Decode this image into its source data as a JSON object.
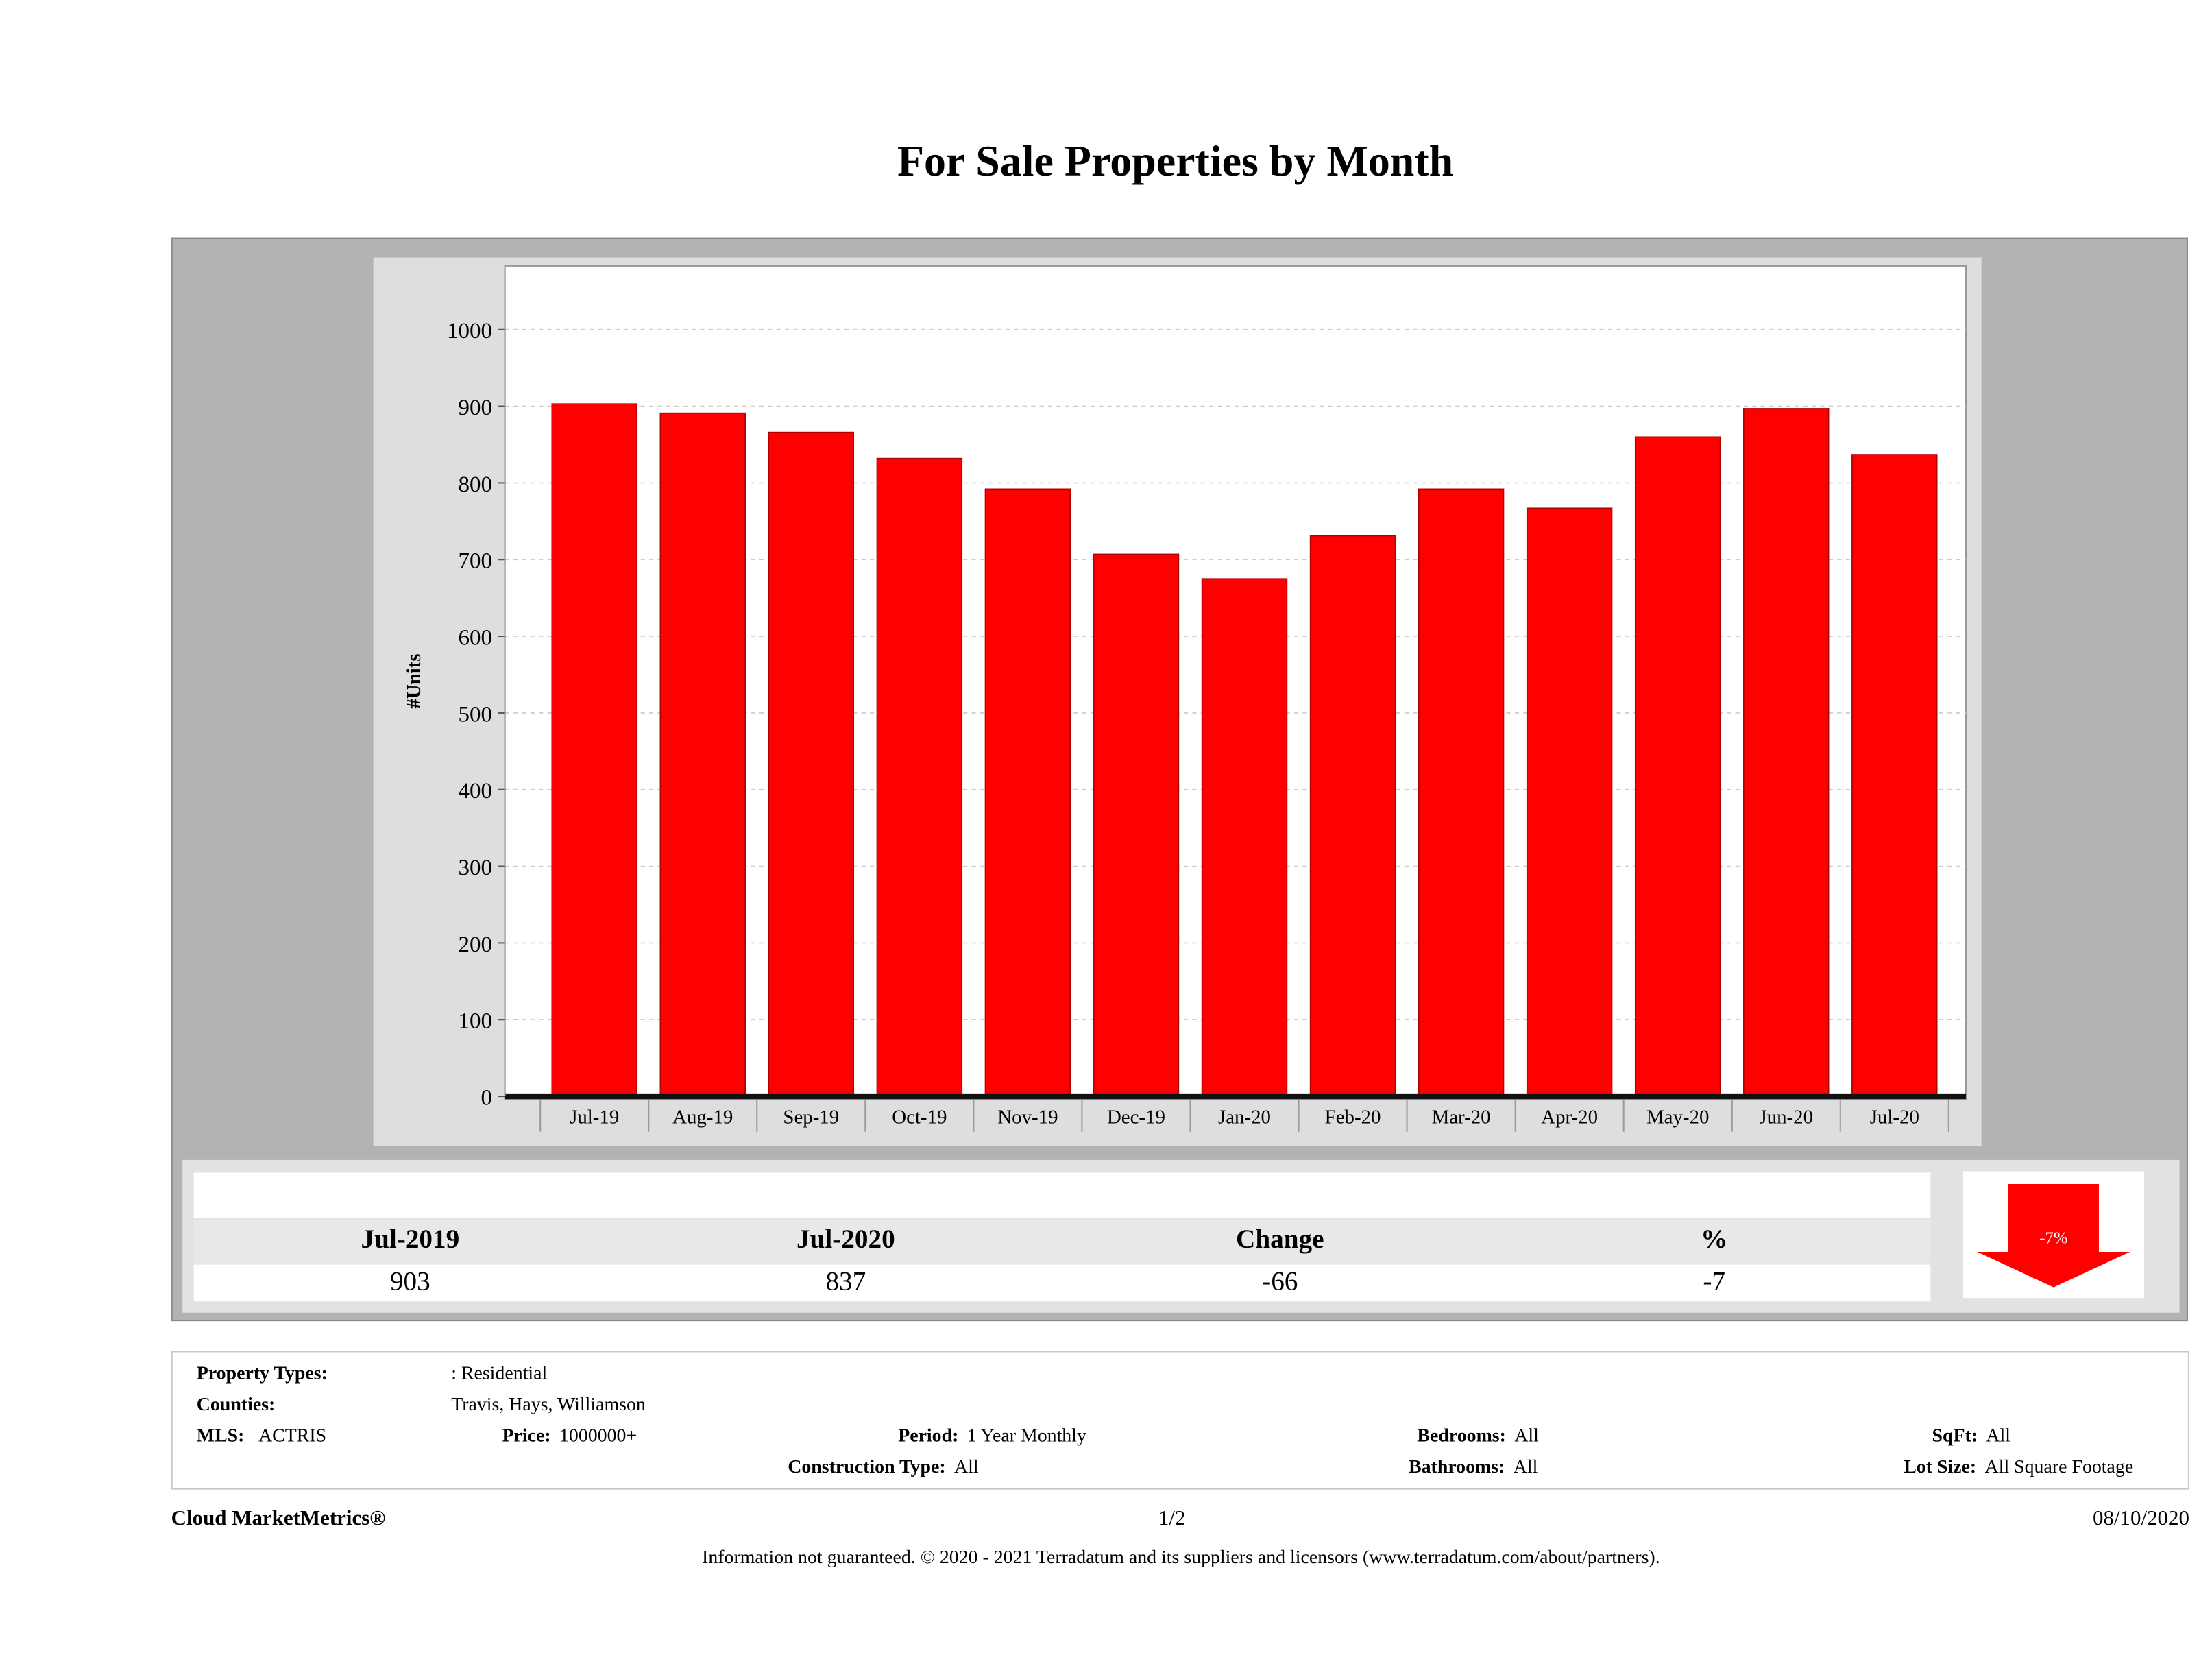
{
  "title": "For Sale Properties by Month",
  "chart_data": {
    "type": "bar",
    "title": "For Sale Properties by Month",
    "xlabel": "",
    "ylabel": "#Units",
    "ylim": [
      0,
      1050
    ],
    "yticks": [
      0,
      100,
      200,
      300,
      400,
      500,
      600,
      700,
      800,
      900,
      1000
    ],
    "grid": true,
    "categories": [
      "Jul-19",
      "Aug-19",
      "Sep-19",
      "Oct-19",
      "Nov-19",
      "Dec-19",
      "Jan-20",
      "Feb-20",
      "Mar-20",
      "Apr-20",
      "May-20",
      "Jun-20",
      "Jul-20"
    ],
    "values": [
      903,
      891,
      866,
      832,
      792,
      707,
      675,
      731,
      792,
      767,
      860,
      897,
      837
    ],
    "bar_color": "#ff0000"
  },
  "summary": {
    "headers": [
      "Jul-2019",
      "Jul-2020",
      "Change",
      "%"
    ],
    "values": [
      "903",
      "837",
      "-66",
      "-7"
    ],
    "arrow_label": "-7%",
    "arrow_direction": "down"
  },
  "info": {
    "property_types_label": "Property Types:",
    "property_types_value": ": Residential",
    "counties_label": "Counties:",
    "counties_value": "Travis, Hays, Williamson",
    "mls_label": "MLS:",
    "mls_value": "ACTRIS",
    "price_label": "Price:",
    "price_value": "1000000+",
    "period_label": "Period:",
    "period_value": "1 Year Monthly",
    "construction_label": "Construction Type:",
    "construction_value": "All",
    "bedrooms_label": "Bedrooms:",
    "bedrooms_value": "All",
    "bathrooms_label": "Bathrooms:",
    "bathrooms_value": "All",
    "sqft_label": "SqFt:",
    "sqft_value": "All",
    "lotsize_label": "Lot Size:",
    "lotsize_value": "All Square Footage"
  },
  "footer": {
    "brand": "Cloud MarketMetrics®",
    "page": "1/2",
    "date": "08/10/2020",
    "disclaimer": "Information not guaranteed. © 2020 - 2021 Terradatum and its suppliers and licensors (www.terradatum.com/about/partners)."
  }
}
